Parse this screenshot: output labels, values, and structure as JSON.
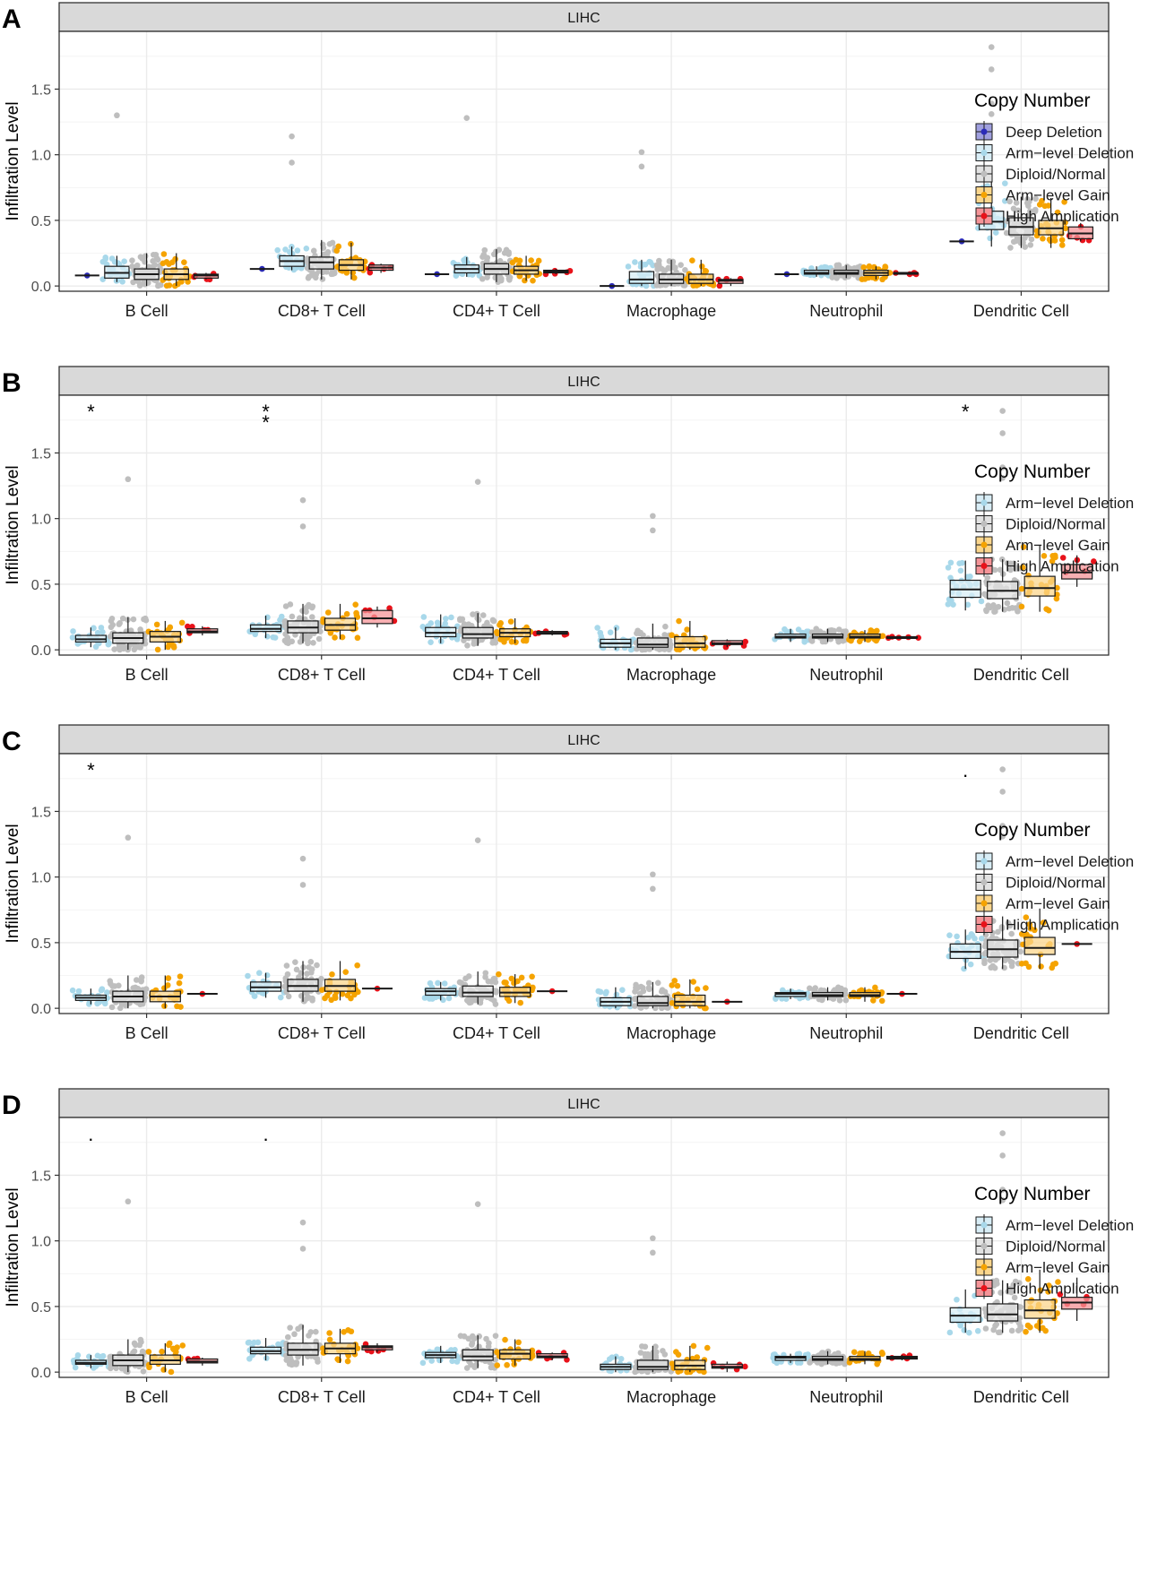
{
  "colors": {
    "deep_deletion": "#2B2BB8",
    "arm_deletion": "#A8D8EA",
    "diploid": "#BEBEBE",
    "arm_gain": "#F5A300",
    "high_amp": "#E8121A",
    "strip_bg": "#D9D9D9",
    "grid": "#EBEBEB"
  },
  "chart_data": [
    {
      "type": "box",
      "panel_label": "A",
      "title": "LIHC",
      "xlabel": "",
      "ylabel": "Infiltration Level",
      "ylim": [
        -0.04,
        1.94
      ],
      "yticks": [
        0.0,
        0.5,
        1.0,
        1.5
      ],
      "ytick_labels": [
        "0.0",
        "0.5",
        "1.0",
        "1.5"
      ],
      "categories": [
        "B Cell",
        "CD8+ T Cell",
        "CD4+ T Cell",
        "Macrophage",
        "Neutrophil",
        "Dendritic Cell"
      ],
      "legend": {
        "title": "Copy Number",
        "entries": [
          "Deep Deletion",
          "Arm−level Deletion",
          "Diploid/Normal",
          "Arm−level Gain",
          "High Amplication"
        ]
      },
      "groups": [
        "deep_deletion",
        "arm_deletion",
        "diploid",
        "arm_gain",
        "high_amp"
      ],
      "annotations": [],
      "series": [
        {
          "name": "Deep Deletion",
          "color_key": "deep_deletion",
          "stats": [
            [
              0.08,
              0.08,
              0.08,
              0.08,
              0.08
            ],
            [
              0.13,
              0.13,
              0.13,
              0.13,
              0.13
            ],
            [
              0.09,
              0.09,
              0.09,
              0.09,
              0.09
            ],
            [
              0.0,
              0.0,
              0.0,
              0.0,
              0.0
            ],
            [
              0.09,
              0.09,
              0.09,
              0.09,
              0.09
            ],
            [
              0.34,
              0.34,
              0.34,
              0.34,
              0.34
            ]
          ]
        },
        {
          "name": "Arm−level Deletion",
          "color_key": "arm_deletion",
          "stats": [
            [
              0.03,
              0.06,
              0.1,
              0.15,
              0.23
            ],
            [
              0.12,
              0.15,
              0.19,
              0.23,
              0.3
            ],
            [
              0.07,
              0.1,
              0.13,
              0.16,
              0.22
            ],
            [
              0.0,
              0.02,
              0.05,
              0.11,
              0.2
            ],
            [
              0.07,
              0.09,
              0.1,
              0.12,
              0.15
            ],
            [
              0.3,
              0.43,
              0.49,
              0.57,
              0.79
            ]
          ]
        },
        {
          "name": "Diploid/Normal",
          "color_key": "diploid",
          "stats": [
            [
              0.0,
              0.05,
              0.09,
              0.13,
              0.25
            ],
            [
              0.05,
              0.13,
              0.18,
              0.22,
              0.35
            ],
            [
              0.03,
              0.09,
              0.13,
              0.17,
              0.28
            ],
            [
              0.0,
              0.02,
              0.05,
              0.09,
              0.2
            ],
            [
              0.06,
              0.09,
              0.1,
              0.12,
              0.16
            ],
            [
              0.29,
              0.39,
              0.45,
              0.52,
              0.68
            ]
          ]
        },
        {
          "name": "Arm−level Gain",
          "color_key": "arm_gain",
          "stats": [
            [
              0.0,
              0.05,
              0.09,
              0.13,
              0.25
            ],
            [
              0.05,
              0.12,
              0.16,
              0.2,
              0.33
            ],
            [
              0.04,
              0.09,
              0.12,
              0.15,
              0.23
            ],
            [
              0.0,
              0.02,
              0.05,
              0.09,
              0.2
            ],
            [
              0.05,
              0.08,
              0.1,
              0.12,
              0.15
            ],
            [
              0.29,
              0.39,
              0.44,
              0.5,
              0.67
            ]
          ]
        },
        {
          "name": "High Amplication",
          "color_key": "high_amp",
          "stats": [
            [
              0.05,
              0.06,
              0.08,
              0.09,
              0.1
            ],
            [
              0.1,
              0.12,
              0.14,
              0.16,
              0.17
            ],
            [
              0.09,
              0.1,
              0.11,
              0.12,
              0.13
            ],
            [
              0.0,
              0.02,
              0.04,
              0.05,
              0.06
            ],
            [
              0.09,
              0.09,
              0.1,
              0.1,
              0.1
            ],
            [
              0.34,
              0.36,
              0.4,
              0.45,
              0.48
            ]
          ]
        }
      ]
    },
    {
      "type": "box",
      "panel_label": "B",
      "title": "LIHC",
      "xlabel": "",
      "ylabel": "Infiltration Level",
      "ylim": [
        -0.04,
        1.94
      ],
      "yticks": [
        0.0,
        0.5,
        1.0,
        1.5
      ],
      "ytick_labels": [
        "0.0",
        "0.5",
        "1.0",
        "1.5"
      ],
      "categories": [
        "B Cell",
        "CD8+ T Cell",
        "CD4+ T Cell",
        "Macrophage",
        "Neutrophil",
        "Dendritic Cell"
      ],
      "legend": {
        "title": "Copy Number",
        "entries": [
          "Arm−level Deletion",
          "Diploid/Normal",
          "Arm−level Gain",
          "High Amplication"
        ]
      },
      "groups": [
        "arm_deletion",
        "diploid",
        "arm_gain",
        "high_amp"
      ],
      "annotations": [
        {
          "category": "B Cell",
          "text": "*"
        },
        {
          "category": "CD8+ T Cell",
          "text": "**"
        },
        {
          "category": "Dendritic Cell",
          "text": "*"
        }
      ],
      "series": [
        {
          "name": "Arm−level Deletion",
          "color_key": "arm_deletion",
          "stats": [
            [
              0.02,
              0.06,
              0.08,
              0.11,
              0.17
            ],
            [
              0.09,
              0.14,
              0.16,
              0.19,
              0.26
            ],
            [
              0.05,
              0.1,
              0.13,
              0.17,
              0.27
            ],
            [
              0.0,
              0.02,
              0.05,
              0.08,
              0.17
            ],
            [
              0.06,
              0.09,
              0.1,
              0.12,
              0.16
            ],
            [
              0.3,
              0.4,
              0.46,
              0.53,
              0.68
            ]
          ]
        },
        {
          "name": "Diploid/Normal",
          "color_key": "diploid",
          "stats": [
            [
              0.0,
              0.05,
              0.09,
              0.13,
              0.25
            ],
            [
              0.05,
              0.13,
              0.17,
              0.22,
              0.35
            ],
            [
              0.03,
              0.09,
              0.12,
              0.17,
              0.28
            ],
            [
              0.0,
              0.02,
              0.04,
              0.09,
              0.2
            ],
            [
              0.06,
              0.09,
              0.1,
              0.12,
              0.16
            ],
            [
              0.29,
              0.39,
              0.45,
              0.52,
              0.69
            ]
          ]
        },
        {
          "name": "Arm−level Gain",
          "color_key": "arm_gain",
          "stats": [
            [
              0.0,
              0.06,
              0.1,
              0.14,
              0.22
            ],
            [
              0.08,
              0.15,
              0.19,
              0.24,
              0.35
            ],
            [
              0.05,
              0.1,
              0.13,
              0.16,
              0.24
            ],
            [
              0.0,
              0.02,
              0.05,
              0.1,
              0.22
            ],
            [
              0.06,
              0.09,
              0.1,
              0.12,
              0.15
            ],
            [
              0.29,
              0.41,
              0.47,
              0.56,
              0.8
            ]
          ]
        },
        {
          "name": "High Amplication",
          "color_key": "high_amp",
          "stats": [
            [
              0.11,
              0.13,
              0.14,
              0.16,
              0.18
            ],
            [
              0.17,
              0.2,
              0.24,
              0.3,
              0.33
            ],
            [
              0.11,
              0.12,
              0.13,
              0.14,
              0.15
            ],
            [
              0.02,
              0.04,
              0.05,
              0.07,
              0.08
            ],
            [
              0.09,
              0.09,
              0.09,
              0.1,
              0.1
            ],
            [
              0.48,
              0.54,
              0.59,
              0.65,
              0.72
            ]
          ]
        }
      ]
    },
    {
      "type": "box",
      "panel_label": "C",
      "title": "LIHC",
      "xlabel": "",
      "ylabel": "Infiltration Level",
      "ylim": [
        -0.04,
        1.94
      ],
      "yticks": [
        0.0,
        0.5,
        1.0,
        1.5
      ],
      "ytick_labels": [
        "0.0",
        "0.5",
        "1.0",
        "1.5"
      ],
      "categories": [
        "B Cell",
        "CD8+ T Cell",
        "CD4+ T Cell",
        "Macrophage",
        "Neutrophil",
        "Dendritic Cell"
      ],
      "legend": {
        "title": "Copy Number",
        "entries": [
          "Arm−level Deletion",
          "Diploid/Normal",
          "Arm−level Gain",
          "High Amplication"
        ]
      },
      "groups": [
        "arm_deletion",
        "diploid",
        "arm_gain",
        "high_amp"
      ],
      "annotations": [
        {
          "category": "B Cell",
          "text": "*"
        },
        {
          "category": "Dendritic Cell",
          "text": "."
        }
      ],
      "series": [
        {
          "name": "Arm−level Deletion",
          "color_key": "arm_deletion",
          "stats": [
            [
              0.03,
              0.06,
              0.08,
              0.1,
              0.15
            ],
            [
              0.08,
              0.13,
              0.16,
              0.2,
              0.27
            ],
            [
              0.06,
              0.1,
              0.13,
              0.15,
              0.2
            ],
            [
              0.0,
              0.02,
              0.05,
              0.08,
              0.16
            ],
            [
              0.07,
              0.09,
              0.11,
              0.12,
              0.15
            ],
            [
              0.3,
              0.38,
              0.43,
              0.49,
              0.6
            ]
          ]
        },
        {
          "name": "Diploid/Normal",
          "color_key": "diploid",
          "stats": [
            [
              0.0,
              0.05,
              0.09,
              0.13,
              0.25
            ],
            [
              0.05,
              0.13,
              0.17,
              0.22,
              0.36
            ],
            [
              0.03,
              0.09,
              0.12,
              0.17,
              0.28
            ],
            [
              0.0,
              0.02,
              0.04,
              0.09,
              0.2
            ],
            [
              0.06,
              0.09,
              0.1,
              0.12,
              0.16
            ],
            [
              0.3,
              0.39,
              0.45,
              0.52,
              0.7
            ]
          ]
        },
        {
          "name": "Arm−level Gain",
          "color_key": "arm_gain",
          "stats": [
            [
              0.0,
              0.05,
              0.09,
              0.13,
              0.25
            ],
            [
              0.06,
              0.13,
              0.17,
              0.22,
              0.36
            ],
            [
              0.04,
              0.09,
              0.12,
              0.16,
              0.26
            ],
            [
              0.0,
              0.02,
              0.05,
              0.1,
              0.22
            ],
            [
              0.05,
              0.09,
              0.1,
              0.12,
              0.16
            ],
            [
              0.3,
              0.41,
              0.46,
              0.54,
              0.76
            ]
          ]
        },
        {
          "name": "High Amplication",
          "color_key": "high_amp",
          "stats": [
            [
              0.11,
              0.11,
              0.11,
              0.11,
              0.11
            ],
            [
              0.15,
              0.15,
              0.15,
              0.15,
              0.15
            ],
            [
              0.13,
              0.13,
              0.13,
              0.13,
              0.13
            ],
            [
              0.05,
              0.05,
              0.05,
              0.05,
              0.05
            ],
            [
              0.11,
              0.11,
              0.11,
              0.11,
              0.11
            ],
            [
              0.49,
              0.49,
              0.49,
              0.49,
              0.49
            ]
          ]
        }
      ]
    },
    {
      "type": "box",
      "panel_label": "D",
      "title": "LIHC",
      "xlabel": "",
      "ylabel": "Infiltration Level",
      "ylim": [
        -0.04,
        1.94
      ],
      "yticks": [
        0.0,
        0.5,
        1.0,
        1.5
      ],
      "ytick_labels": [
        "0.0",
        "0.5",
        "1.0",
        "1.5"
      ],
      "categories": [
        "B Cell",
        "CD8+ T Cell",
        "CD4+ T Cell",
        "Macrophage",
        "Neutrophil",
        "Dendritic Cell"
      ],
      "legend": {
        "title": "Copy Number",
        "entries": [
          "Arm−level Deletion",
          "Diploid/Normal",
          "Arm−level Gain",
          "High Amplication"
        ]
      },
      "groups": [
        "arm_deletion",
        "diploid",
        "arm_gain",
        "high_amp"
      ],
      "annotations": [
        {
          "category": "B Cell",
          "text": "."
        },
        {
          "category": "CD8+ T Cell",
          "text": "."
        }
      ],
      "series": [
        {
          "name": "Arm−level Deletion",
          "color_key": "arm_deletion",
          "stats": [
            [
              0.03,
              0.06,
              0.07,
              0.09,
              0.13
            ],
            [
              0.09,
              0.14,
              0.16,
              0.19,
              0.26
            ],
            [
              0.07,
              0.11,
              0.13,
              0.15,
              0.2
            ],
            [
              0.0,
              0.02,
              0.04,
              0.06,
              0.12
            ],
            [
              0.07,
              0.09,
              0.11,
              0.12,
              0.14
            ],
            [
              0.3,
              0.38,
              0.43,
              0.49,
              0.63
            ]
          ]
        },
        {
          "name": "Diploid/Normal",
          "color_key": "diploid",
          "stats": [
            [
              0.0,
              0.05,
              0.09,
              0.13,
              0.25
            ],
            [
              0.05,
              0.13,
              0.17,
              0.22,
              0.36
            ],
            [
              0.03,
              0.09,
              0.12,
              0.17,
              0.28
            ],
            [
              0.0,
              0.02,
              0.04,
              0.09,
              0.2
            ],
            [
              0.06,
              0.09,
              0.1,
              0.12,
              0.16
            ],
            [
              0.3,
              0.39,
              0.44,
              0.52,
              0.7
            ]
          ]
        },
        {
          "name": "Arm−level Gain",
          "color_key": "arm_gain",
          "stats": [
            [
              0.0,
              0.06,
              0.09,
              0.13,
              0.22
            ],
            [
              0.07,
              0.14,
              0.18,
              0.22,
              0.33
            ],
            [
              0.05,
              0.1,
              0.14,
              0.17,
              0.25
            ],
            [
              0.0,
              0.02,
              0.05,
              0.09,
              0.2
            ],
            [
              0.06,
              0.09,
              0.1,
              0.12,
              0.16
            ],
            [
              0.3,
              0.41,
              0.47,
              0.55,
              0.78
            ]
          ]
        },
        {
          "name": "High Amplication",
          "color_key": "high_amp",
          "stats": [
            [
              0.05,
              0.07,
              0.08,
              0.1,
              0.11
            ],
            [
              0.15,
              0.17,
              0.19,
              0.2,
              0.22
            ],
            [
              0.09,
              0.11,
              0.12,
              0.14,
              0.15
            ],
            [
              0.0,
              0.03,
              0.04,
              0.06,
              0.08
            ],
            [
              0.09,
              0.1,
              0.11,
              0.12,
              0.13
            ],
            [
              0.39,
              0.48,
              0.53,
              0.57,
              0.72
            ]
          ]
        }
      ]
    }
  ]
}
